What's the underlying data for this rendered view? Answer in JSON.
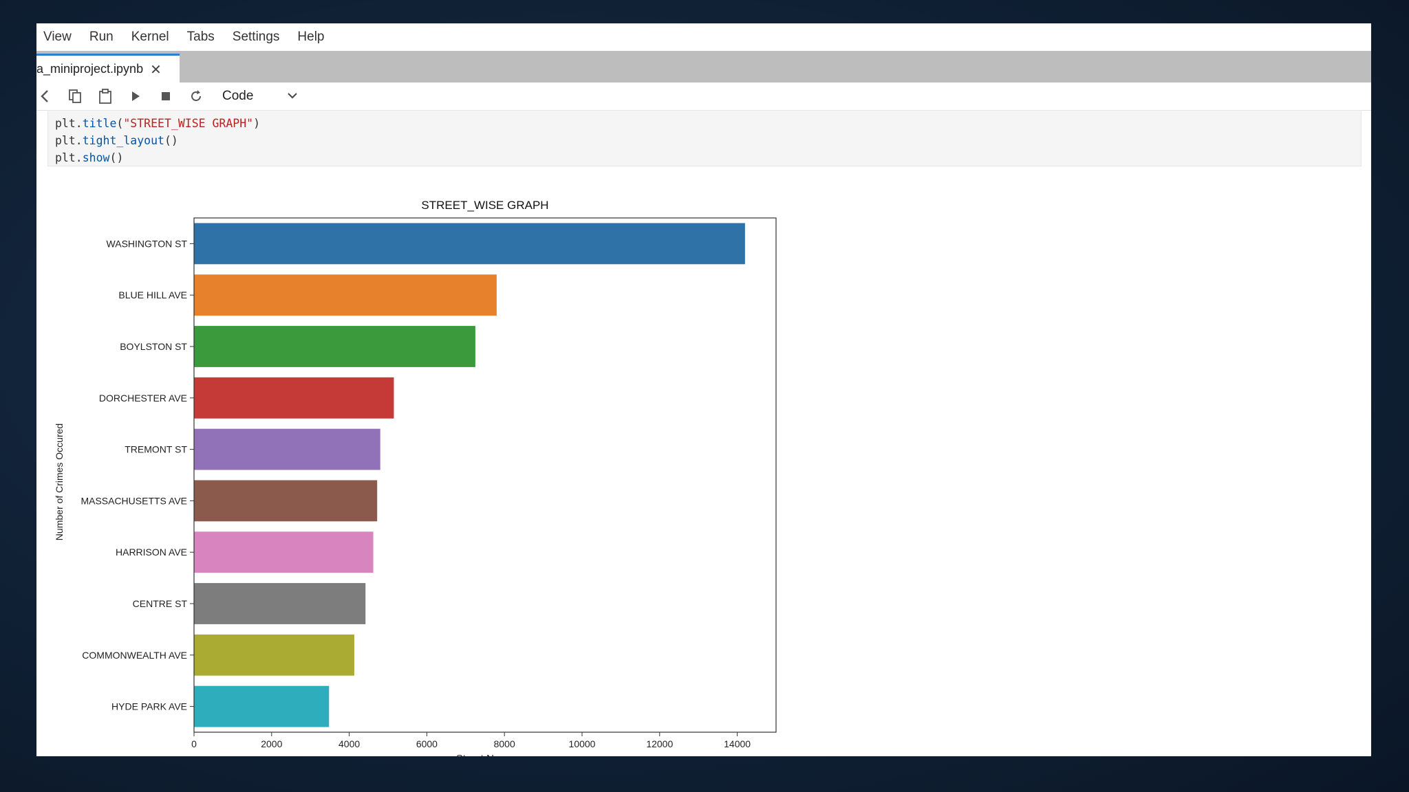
{
  "menubar": {
    "items": [
      "View",
      "Run",
      "Kernel",
      "Tabs",
      "Settings",
      "Help"
    ]
  },
  "tab": {
    "label": "a_miniproject.ipynb",
    "close": "✕"
  },
  "toolbar": {
    "cell_type": "Code"
  },
  "code": {
    "lines": [
      {
        "obj": "plt.",
        "fn": "title",
        "open": "(",
        "arg": "\"STREET_WISE GRAPH\"",
        "close": ")"
      },
      {
        "obj": "plt.",
        "fn": "tight_layout",
        "open": "(",
        "arg": "",
        "close": ")"
      },
      {
        "obj": "plt.",
        "fn": "show",
        "open": "(",
        "arg": "",
        "close": ")"
      }
    ]
  },
  "chart_data": {
    "type": "bar",
    "orientation": "horizontal",
    "title": "STREET_WISE GRAPH",
    "xlabel": "Street Name",
    "ylabel": "Number of Crimes Occured",
    "xlim": [
      0,
      15000
    ],
    "xticks": [
      0,
      2000,
      4000,
      6000,
      8000,
      10000,
      12000,
      14000
    ],
    "categories": [
      "WASHINGTON ST",
      "BLUE HILL AVE",
      "BOYLSTON ST",
      "DORCHESTER AVE",
      "TREMONT ST",
      "MASSACHUSETTS AVE",
      "HARRISON AVE",
      "CENTRE ST",
      "COMMONWEALTH AVE",
      "HYDE PARK AVE"
    ],
    "values": [
      14200,
      7800,
      7250,
      5150,
      4800,
      4720,
      4620,
      4420,
      4130,
      3480
    ],
    "colors": [
      "#2f72a8",
      "#e8812c",
      "#3b9a3b",
      "#c53a36",
      "#9171b7",
      "#8b5a4c",
      "#d885bf",
      "#7d7d7d",
      "#a9ab33",
      "#2eaebd"
    ]
  }
}
